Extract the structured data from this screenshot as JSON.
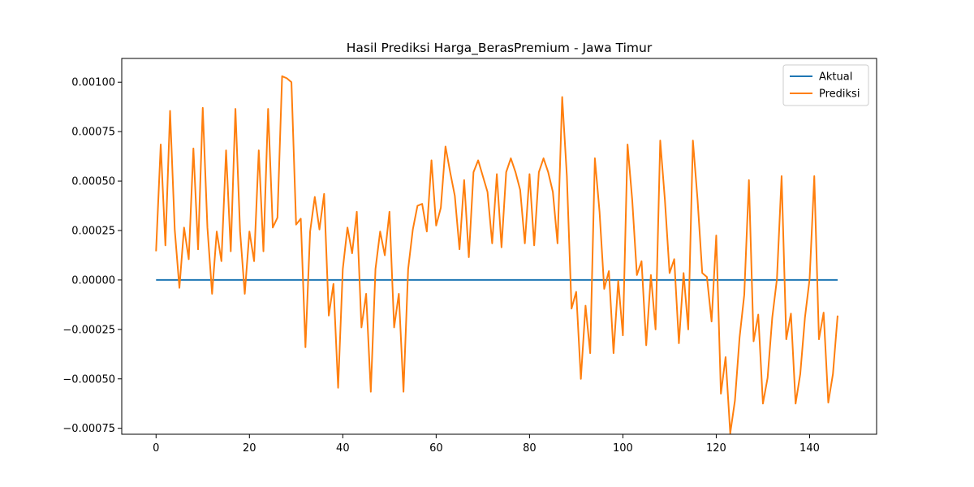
{
  "chart_data": {
    "type": "line",
    "title": "Hasil Prediksi Harga_BerasPremium - Jawa Timur",
    "xlabel": "",
    "ylabel": "",
    "xlim": [
      -7.35,
      154.35
    ],
    "ylim": [
      -0.00078,
      0.00112
    ],
    "xticks": [
      0,
      20,
      40,
      60,
      80,
      100,
      120,
      140
    ],
    "xtick_labels": [
      "0",
      "20",
      "40",
      "60",
      "80",
      "100",
      "120",
      "140"
    ],
    "yticks": [
      -0.00075,
      -0.0005,
      -0.00025,
      0,
      0.00025,
      0.0005,
      0.00075,
      0.001
    ],
    "ytick_labels": [
      "−0.00075",
      "−0.00050",
      "−0.00025",
      "0.00000",
      "0.00025",
      "0.00050",
      "0.00075",
      "0.00100"
    ],
    "grid": false,
    "legend_position": "upper right",
    "x_start": 0,
    "x_step": 1,
    "series": [
      {
        "name": "Aktual",
        "color": "#1f77b4",
        "values": [
          0,
          0,
          0,
          0,
          0,
          0,
          0,
          0,
          0,
          0,
          0,
          0,
          0,
          0,
          0,
          0,
          0,
          0,
          0,
          0,
          0,
          0,
          0,
          0,
          0,
          0,
          0,
          0,
          0,
          0,
          0,
          0,
          0,
          0,
          0,
          0,
          0,
          0,
          0,
          0,
          0,
          0,
          0,
          0,
          0,
          0,
          0,
          0,
          0,
          0,
          0,
          0,
          0,
          0,
          0,
          0,
          0,
          0,
          0,
          0,
          0,
          0,
          0,
          0,
          0,
          0,
          0,
          0,
          0,
          0,
          0,
          0,
          0,
          0,
          0,
          0,
          0,
          0,
          0,
          0,
          0,
          0,
          0,
          0,
          0,
          0,
          0,
          0,
          0,
          0,
          0,
          0,
          0,
          0,
          0,
          0,
          0,
          0,
          0,
          0,
          0,
          0,
          0,
          0,
          0,
          0,
          0,
          0,
          0,
          0,
          0,
          0,
          0,
          0,
          0,
          0,
          0,
          0,
          0,
          0,
          0,
          0,
          0,
          0,
          0,
          0,
          0,
          0,
          0,
          0,
          0,
          0,
          0,
          0,
          0,
          0,
          0,
          0,
          0,
          0,
          0,
          0,
          0,
          0,
          0,
          0,
          0
        ]
      },
      {
        "name": "Prediksi",
        "color": "#ff7f0e",
        "values": [
          0.000145,
          0.000685,
          0.000175,
          0.000855,
          0.000255,
          -4e-05,
          0.000265,
          0.000105,
          0.000665,
          0.000155,
          0.00087,
          0.000265,
          -7e-05,
          0.000245,
          9.5e-05,
          0.000655,
          0.000145,
          0.000865,
          0.000245,
          -7e-05,
          0.000245,
          9.5e-05,
          0.000655,
          0.000145,
          0.000865,
          0.000265,
          0.000315,
          0.00103,
          0.00102,
          0.001,
          0.00028,
          0.00031,
          -0.00034,
          0.000245,
          0.00042,
          0.000255,
          0.000435,
          -0.00018,
          -2e-05,
          -0.000545,
          5.5e-05,
          0.000265,
          0.000135,
          0.000345,
          -0.00024,
          -7e-05,
          -0.000565,
          5.5e-05,
          0.000245,
          0.000125,
          0.000345,
          -0.00024,
          -7e-05,
          -0.000565,
          5.5e-05,
          0.000255,
          0.000375,
          0.000385,
          0.000245,
          0.000605,
          0.000275,
          0.000365,
          0.000675,
          0.000545,
          0.000425,
          0.000155,
          0.000505,
          0.000115,
          0.000545,
          0.000605,
          0.000525,
          0.000445,
          0.000185,
          0.000535,
          0.000165,
          0.000545,
          0.000615,
          0.000545,
          0.000455,
          0.000185,
          0.000535,
          0.000175,
          0.000545,
          0.000615,
          0.000545,
          0.000445,
          0.000185,
          0.000925,
          0.000525,
          -0.000145,
          -6e-05,
          -0.0005,
          -0.00013,
          -0.00037,
          0.000615,
          0.000345,
          -4.5e-05,
          4.5e-05,
          -0.00037,
          -5e-06,
          -0.00028,
          0.000685,
          0.000405,
          2.5e-05,
          9.5e-05,
          -0.00033,
          2.5e-05,
          -0.00025,
          0.000705,
          0.000405,
          3.5e-05,
          0.000105,
          -0.00032,
          3.5e-05,
          -0.00025,
          0.000705,
          0.000405,
          3.5e-05,
          1.5e-05,
          -0.00021,
          0.000225,
          -0.000575,
          -0.00039,
          -0.000775,
          -0.00061,
          -0.00029,
          -7.5e-05,
          0.000505,
          -0.00031,
          -0.000175,
          -0.000625,
          -0.000495,
          -0.00019,
          5e-06,
          0.000525,
          -0.0003,
          -0.00017,
          -0.000625,
          -0.000475,
          -0.00019,
          5e-06,
          0.000525,
          -0.0003,
          -0.000165,
          -0.00062,
          -0.000475,
          -0.00018
        ]
      }
    ]
  }
}
